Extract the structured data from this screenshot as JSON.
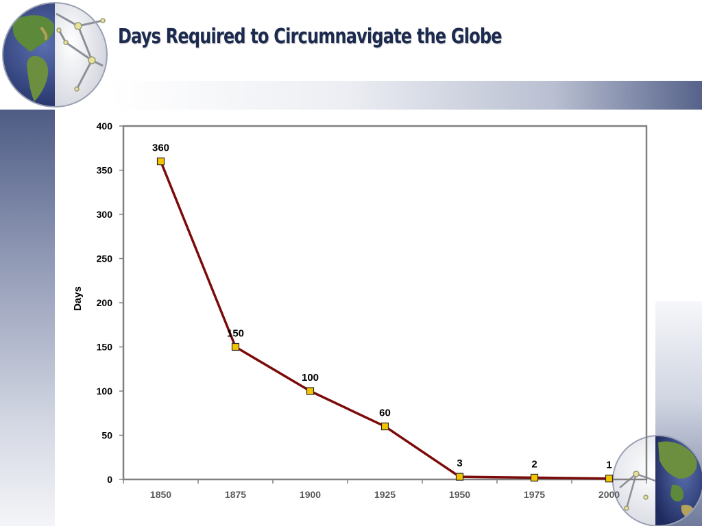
{
  "title": "Days Required to Circumnavigate the Globe",
  "colors": {
    "line": "#7b0a0a",
    "marker_fill": "#f5c400",
    "marker_edge": "#2b2b2b",
    "frame": "#808080",
    "title": "#1b2a4e"
  },
  "icons": [
    "globe-icon",
    "network-nodes-icon"
  ],
  "chart_data": {
    "type": "line",
    "title": "",
    "xlabel": "",
    "ylabel": "Days",
    "categories": [
      "1850",
      "1875",
      "1900",
      "1925",
      "1950",
      "1975",
      "2000"
    ],
    "series": [
      {
        "values": [
          360,
          150,
          100,
          60,
          3,
          2,
          1
        ]
      }
    ],
    "data_labels": [
      "360",
      "150",
      "100",
      "60",
      "3",
      "2",
      "1"
    ],
    "ylim": [
      0,
      400
    ],
    "yticks": [
      0,
      50,
      100,
      150,
      200,
      250,
      300,
      350,
      400
    ],
    "grid": false,
    "legend": "none",
    "marker": "square"
  }
}
